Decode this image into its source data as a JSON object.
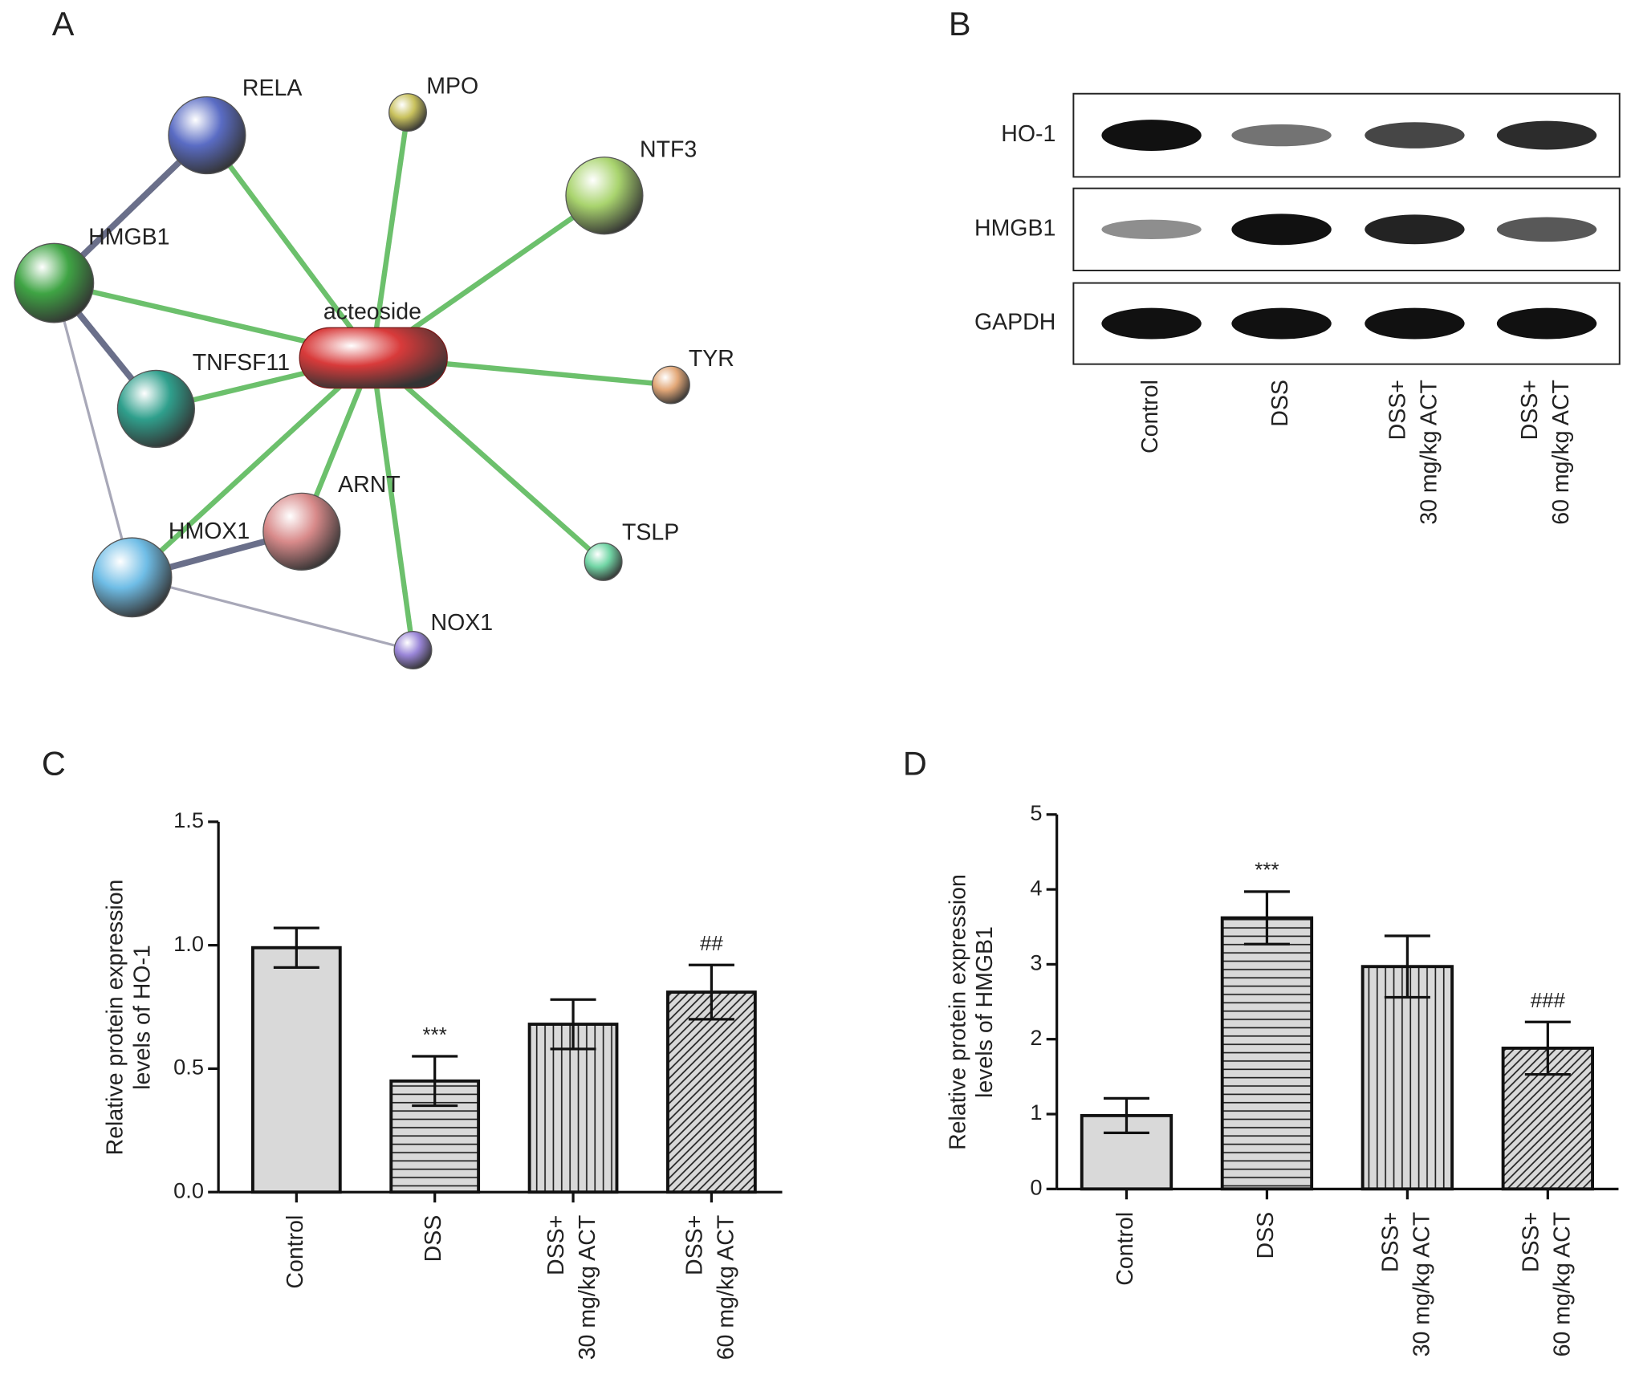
{
  "panels": [
    "A",
    "B",
    "C",
    "D"
  ],
  "network": {
    "nodes": [
      {
        "label": "acteoside",
        "color": "#d83a3a"
      },
      {
        "label": "RELA",
        "color": "#5a6cc4"
      },
      {
        "label": "MPO",
        "color": "#c9c25e"
      },
      {
        "label": "NTF3",
        "color": "#a9d46e"
      },
      {
        "label": "HMGB1",
        "color": "#3fa444"
      },
      {
        "label": "TNFSF11",
        "color": "#2f9f8c"
      },
      {
        "label": "TYR",
        "color": "#e3a878"
      },
      {
        "label": "ARNT",
        "color": "#d88a8a"
      },
      {
        "label": "HMOX1",
        "color": "#6fbde6"
      },
      {
        "label": "TSLP",
        "color": "#72d6a6"
      },
      {
        "label": "NOX1",
        "color": "#9a86d8"
      }
    ]
  },
  "blot": {
    "rows": [
      "HO-1",
      "HMGB1",
      "GAPDH"
    ],
    "lanes": [
      "Control",
      "DSS",
      "DSS+\n30 mg/kg ACT",
      "DSS+\n60 mg/kg ACT"
    ]
  },
  "chart_data": [
    {
      "type": "bar",
      "ylabel": "Relative protein expression\nlevels of HO-1",
      "categories": [
        "Control",
        "DSS",
        "DSS+\n30 mg/kg ACT",
        "DSS+\n60 mg/kg ACT"
      ],
      "values": [
        0.99,
        0.45,
        0.68,
        0.81
      ],
      "errors": [
        0.08,
        0.1,
        0.1,
        0.11
      ],
      "annotations": [
        null,
        "***",
        null,
        "##"
      ],
      "patterns": [
        "solid",
        "horizontal",
        "vertical",
        "diagonal"
      ],
      "color": "#d9d9d9",
      "ylim": [
        0,
        1.5
      ],
      "yticks": [
        {
          "value": 0,
          "label": "0.0"
        },
        {
          "value": 0.5,
          "label": "0.5"
        },
        {
          "value": 1,
          "label": "1.0"
        },
        {
          "value": 1.5,
          "label": "1.5"
        }
      ]
    },
    {
      "type": "bar",
      "ylabel": "Relative protein expression\nlevels of HMGB1",
      "categories": [
        "Control",
        "DSS",
        "DSS+\n30 mg/kg ACT",
        "DSS+\n60 mg/kg ACT"
      ],
      "values": [
        0.98,
        3.62,
        2.97,
        1.88
      ],
      "errors": [
        0.23,
        0.35,
        0.41,
        0.35
      ],
      "annotations": [
        null,
        "***",
        null,
        "###"
      ],
      "patterns": [
        "solid",
        "horizontal",
        "vertical",
        "diagonal"
      ],
      "color": "#d9d9d9",
      "ylim": [
        0,
        5
      ],
      "yticks": [
        0,
        1,
        2,
        3,
        4,
        5
      ]
    }
  ]
}
